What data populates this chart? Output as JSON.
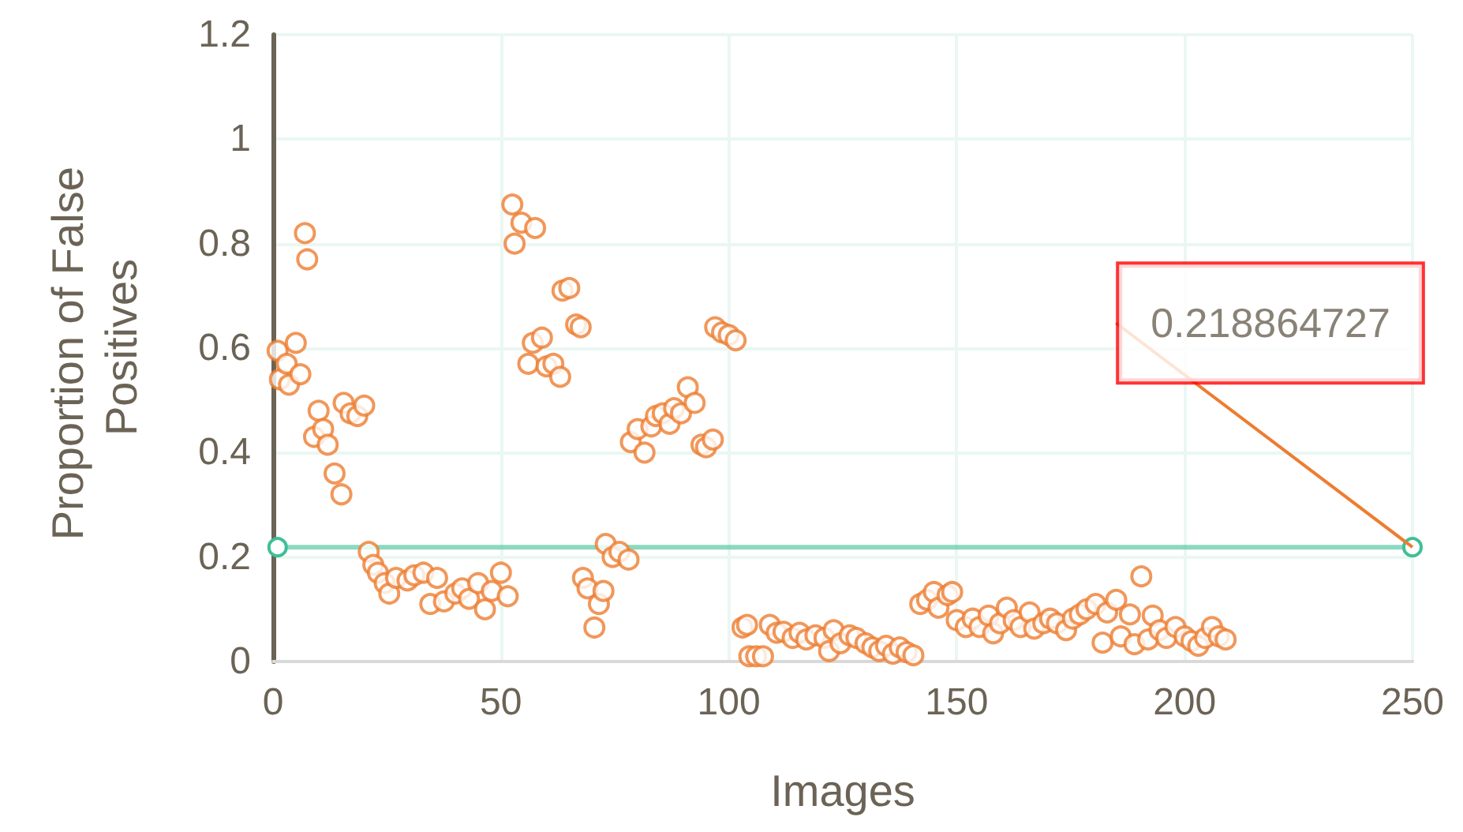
{
  "chart_data": {
    "type": "scatter",
    "xlabel": "Images",
    "ylabel": "Proportion of False Positives",
    "xlim": [
      0,
      250
    ],
    "xticks": [
      0,
      50,
      100,
      150,
      200,
      250
    ],
    "ylim": [
      0,
      1.2
    ],
    "yticks": [
      0,
      0.2,
      0.4,
      0.6,
      0.8,
      1,
      1.2
    ],
    "grid": true,
    "marker": "circle",
    "annotations": [
      {
        "text": "0.218864727",
        "x": 250,
        "y": 0.218864727
      }
    ],
    "series": [
      {
        "color": "#ed7d31",
        "x": [
          1,
          1.5,
          3,
          3.5,
          5,
          6,
          7,
          7.5,
          9,
          10,
          11,
          12,
          13.5,
          15,
          15.5,
          17,
          18.5,
          20,
          21,
          22,
          23,
          24.5,
          25.5,
          27,
          29.5,
          31,
          33,
          34.5,
          36,
          37.5,
          40,
          41.5,
          43,
          45,
          46.5,
          48,
          50,
          51.5,
          52.5,
          53,
          54.5,
          56,
          57.5,
          57,
          59,
          60,
          61.5,
          63,
          63.5,
          65,
          66.5,
          67.5,
          68,
          69,
          70.5,
          71.5,
          72.5,
          73,
          74.5,
          76,
          78,
          78.5,
          80,
          81.5,
          83,
          84,
          85.5,
          87,
          88,
          89.5,
          91,
          92.5,
          94,
          95,
          96.5,
          97,
          98.5,
          100,
          101.5,
          103,
          104,
          104.5,
          106,
          107.5,
          109,
          110.5,
          112,
          114,
          115.5,
          117,
          119,
          121,
          122,
          123,
          124.5,
          126.5,
          128,
          130,
          131.5,
          133,
          134.5,
          136,
          137.5,
          139,
          140.5,
          142,
          143.5,
          145,
          146,
          148,
          149,
          150,
          152,
          153.5,
          155,
          157,
          158,
          159.5,
          161,
          162.5,
          164,
          166,
          167,
          169,
          170.5,
          172,
          174,
          175.5,
          177,
          178.5,
          180.5,
          182,
          183,
          185,
          186,
          188,
          189,
          190.5,
          192,
          193,
          194.5,
          196,
          198,
          200,
          201.5,
          203,
          204.5,
          206,
          207.5,
          209
        ],
        "values": [
          0.595,
          0.54,
          0.57,
          0.53,
          0.61,
          0.55,
          0.82,
          0.77,
          0.43,
          0.48,
          0.445,
          0.415,
          0.36,
          0.32,
          0.495,
          0.475,
          0.47,
          0.49,
          0.21,
          0.185,
          0.17,
          0.15,
          0.13,
          0.16,
          0.155,
          0.165,
          0.17,
          0.11,
          0.16,
          0.115,
          0.13,
          0.14,
          0.12,
          0.15,
          0.1,
          0.135,
          0.17,
          0.125,
          0.875,
          0.8,
          0.84,
          0.57,
          0.83,
          0.61,
          0.62,
          0.565,
          0.57,
          0.545,
          0.71,
          0.715,
          0.645,
          0.64,
          0.16,
          0.14,
          0.065,
          0.11,
          0.135,
          0.225,
          0.2,
          0.21,
          0.195,
          0.42,
          0.445,
          0.4,
          0.45,
          0.47,
          0.475,
          0.455,
          0.485,
          0.475,
          0.525,
          0.495,
          0.415,
          0.41,
          0.425,
          0.64,
          0.63,
          0.625,
          0.615,
          0.065,
          0.07,
          0.01,
          0.01,
          0.01,
          0.07,
          0.055,
          0.057,
          0.045,
          0.055,
          0.042,
          0.05,
          0.045,
          0.02,
          0.06,
          0.035,
          0.05,
          0.045,
          0.035,
          0.027,
          0.02,
          0.03,
          0.015,
          0.027,
          0.018,
          0.012,
          0.11,
          0.118,
          0.133,
          0.103,
          0.127,
          0.133,
          0.079,
          0.066,
          0.082,
          0.066,
          0.088,
          0.054,
          0.073,
          0.103,
          0.079,
          0.066,
          0.094,
          0.063,
          0.073,
          0.082,
          0.073,
          0.06,
          0.082,
          0.09,
          0.1,
          0.11,
          0.036,
          0.094,
          0.118,
          0.048,
          0.09,
          0.033,
          0.163,
          0.042,
          0.088,
          0.06,
          0.045,
          0.066,
          0.048,
          0.039,
          0.03,
          0.045,
          0.066,
          0.048,
          0.042
        ]
      },
      {
        "type": "line",
        "color": "#3fbf97",
        "x": [
          1,
          250
        ],
        "values": [
          0.218864727,
          0.218864727
        ]
      }
    ]
  }
}
